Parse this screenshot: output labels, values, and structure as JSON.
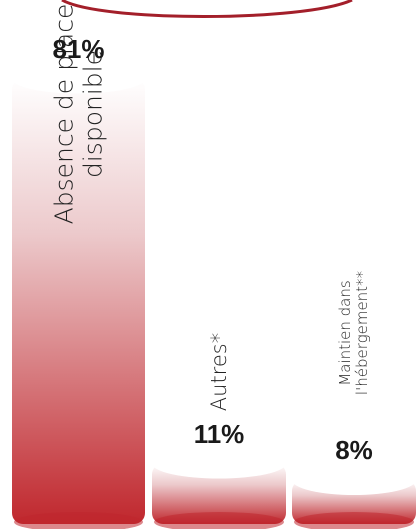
{
  "chart_data": {
    "type": "bar",
    "categories": [
      "Absence de place disponible",
      "Autres*",
      "Maintien dans l'hébergement**"
    ],
    "category_lines": [
      [
        "Absence de place",
        "disponible"
      ],
      [
        "Autres*"
      ],
      [
        "Maintien dans",
        "l'hébergement**"
      ]
    ],
    "values": [
      81,
      11,
      8
    ],
    "value_labels": [
      "81%",
      "11%",
      "8%"
    ],
    "unit": "%",
    "ylim": [
      0,
      100
    ],
    "colors": {
      "bar_top": "#ffffff",
      "bar_bottom": "#c0272d",
      "accent": "#a31f2a"
    },
    "title": "",
    "xlabel": "",
    "ylabel": "",
    "legend": "none",
    "grid": false
  }
}
